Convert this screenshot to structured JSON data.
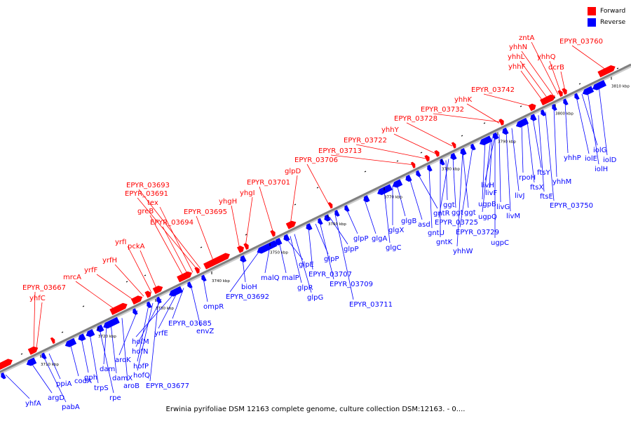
{
  "caption": "Erwinia pyrifoliae DSM 12163 complete genome, culture collection DSM:12163. - 0....",
  "legend": [
    {
      "label": "Forward",
      "color": "#ff0000"
    },
    {
      "label": "Reverse",
      "color": "#0000ff"
    }
  ],
  "colors": {
    "forward": "#ff0000",
    "reverse": "#0000ff",
    "backbone": "#808080"
  },
  "ticks": [
    "3710 kbp",
    "3720 kbp",
    "3730 kbp",
    "3740 kbp",
    "3750 kbp",
    "3760 kbp",
    "3770 kbp",
    "3780 kbp",
    "3790 kbp",
    "3800 kbp",
    "3810 kbp"
  ],
  "forward_labels": [
    "EPYR_03667",
    "yhfC",
    "mrcA",
    "yrfF",
    "yrfH",
    "yrfI",
    "pckA",
    "greB",
    "tex",
    "EPYR_03691",
    "EPYR_03693",
    "EPYR_03694",
    "EPYR_03695",
    "yhgH",
    "yhgI",
    "EPYR_03701",
    "glpD",
    "EPYR_03706",
    "EPYR_03713",
    "EPYR_03722",
    "yhhY",
    "EPYR_03728",
    "EPYR_03732",
    "yhhK",
    "EPYR_03742",
    "yhhF",
    "yhhL",
    "yhhN",
    "zntA",
    "yhhQ",
    "dcrB",
    "EPYR_03760"
  ],
  "reverse_labels": [
    "yhfA",
    "argD",
    "pabA",
    "ppiA",
    "codA",
    "gph",
    "trpS",
    "rpe",
    "dam",
    "damX",
    "aroB",
    "aroK",
    "hofP",
    "hofQ",
    "EPYR_03677",
    "hofN",
    "hofM",
    "yrfE",
    "EPYR_03685",
    "envZ",
    "ompR",
    "bioH",
    "EPYR_03692",
    "malQ",
    "malP",
    "glpE",
    "glpR",
    "glpG",
    "EPYR_03707",
    "glpP",
    "EPYR_03709",
    "glpP",
    "EPYR_03711",
    "glpP",
    "glgA",
    "glgC",
    "glgX",
    "glgB",
    "asd",
    "gntR",
    "gntU",
    "gntK",
    "ggt",
    "EPYR_03725",
    "yhhW",
    "ggt",
    "ggt",
    "EPYR_03729",
    "ugpB",
    "ugpQ",
    "ugpC",
    "livF",
    "livH",
    "livG",
    "livM",
    "livJ",
    "rpoH",
    "ftsX",
    "ftsY",
    "ftsE",
    "EPYR_03750",
    "yhhM",
    "yhhP",
    "iolE",
    "iolG",
    "iolH",
    "iolD"
  ]
}
